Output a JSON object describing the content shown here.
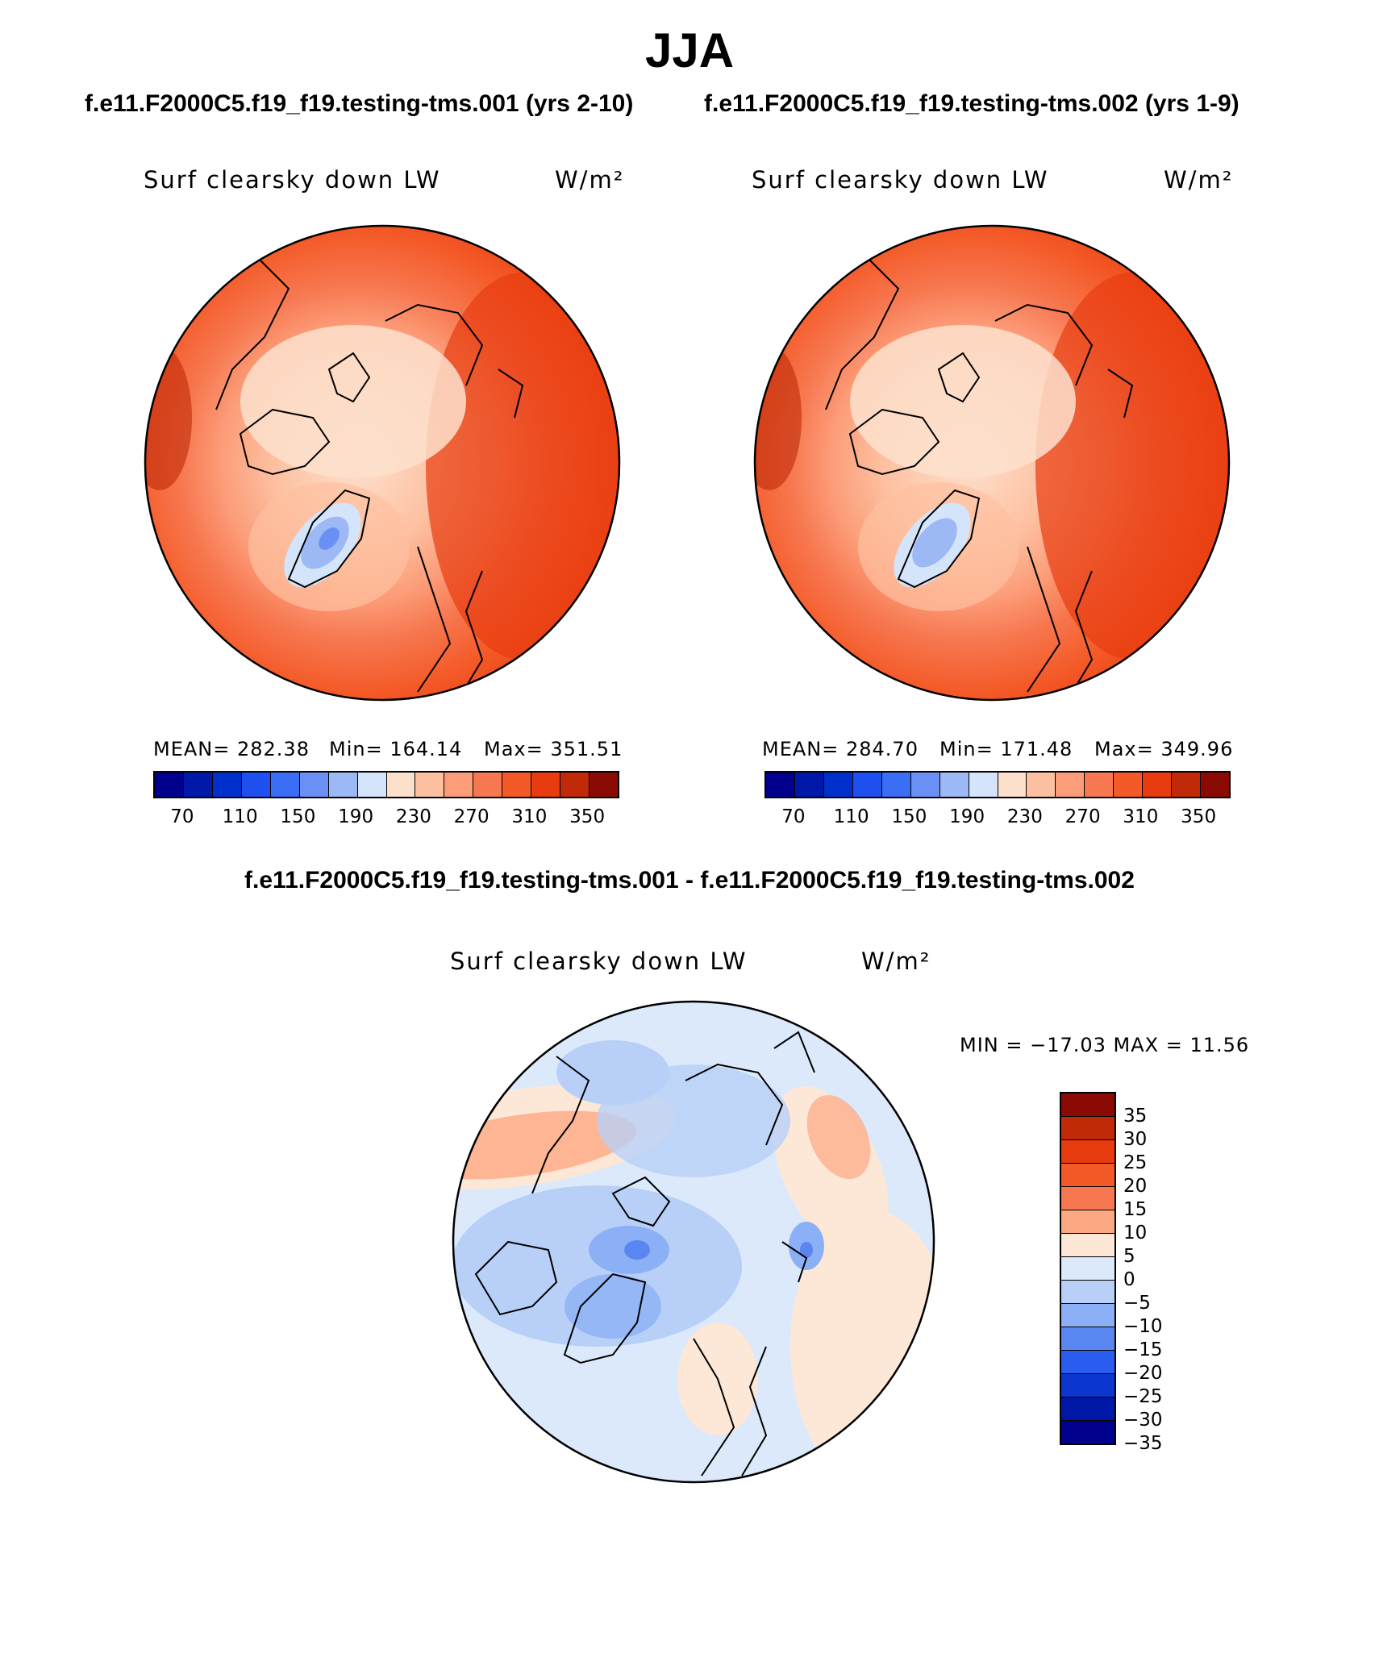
{
  "title": "JJA",
  "case1_title": "f.e11.F2000C5.f19_f19.testing-tms.001 (yrs 2-10)",
  "case2_title": "f.e11.F2000C5.f19_f19.testing-tms.002 (yrs 1-9)",
  "diff_title": "f.e11.F2000C5.f19_f19.testing-tms.001 - f.e11.F2000C5.f19_f19.testing-tms.002",
  "variable": "Surf clearsky down LW",
  "units": "W/m²",
  "panels": [
    {
      "mean": "MEAN= 282.38",
      "min": "Min= 164.14",
      "max": "Max= 351.51"
    },
    {
      "mean": "MEAN= 284.70",
      "min": "Min= 171.48",
      "max": "Max= 349.96"
    }
  ],
  "diff_stats": "MIN = −17.03 MAX =   11.56",
  "colorbar_abs": {
    "colors": [
      "#00008c",
      "#0018a8",
      "#0030cc",
      "#1e50f0",
      "#3a6ef5",
      "#6a90f5",
      "#9cb8f5",
      "#d4e4fa",
      "#fde0cc",
      "#fdc0a0",
      "#fc9c78",
      "#f77850",
      "#f45a28",
      "#e83c10",
      "#c02a08",
      "#8c0a04"
    ],
    "labels": [
      "70",
      "110",
      "150",
      "190",
      "230",
      "270",
      "310",
      "350"
    ]
  },
  "colorbar_diff": {
    "colors": [
      "#8c0a04",
      "#c02a08",
      "#e83c10",
      "#f45a28",
      "#f77850",
      "#fca882",
      "#fde8d8",
      "#dbe9fa",
      "#b8d0f8",
      "#8cb0f5",
      "#5a86f2",
      "#2a5cf0",
      "#0c36d0",
      "#0018a8",
      "#00008c"
    ],
    "labels": [
      "35",
      "30",
      "25",
      "20",
      "15",
      "10",
      "5",
      "0",
      "−5",
      "−10",
      "−15",
      "−20",
      "−25",
      "−30",
      "−35"
    ]
  }
}
